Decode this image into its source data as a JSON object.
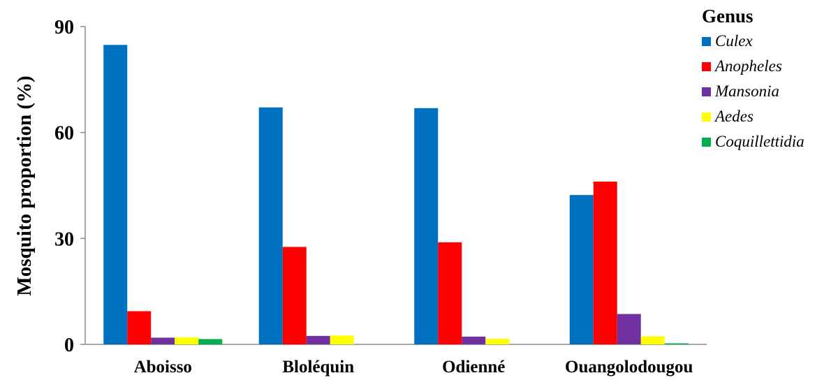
{
  "chart_data": {
    "type": "bar",
    "categories": [
      "Aboisso",
      "Bloléquin",
      "Odienné",
      "Ouangolodougou"
    ],
    "ylabel": "Mosquito proportion (%)",
    "xlabel": "",
    "ylim": [
      0,
      90
    ],
    "yticks": [
      0,
      30,
      60,
      90
    ],
    "grid": false,
    "legend_title": "Genus",
    "legend_placement": "top-right",
    "series": [
      {
        "name": "Culex",
        "color": "#0070C0",
        "values": [
          84.8,
          67.1,
          66.9,
          42.3
        ]
      },
      {
        "name": "Anopheles",
        "color": "#FF0000",
        "values": [
          9.4,
          27.6,
          28.9,
          46.1
        ]
      },
      {
        "name": "Mansonia",
        "color": "#7030A0",
        "values": [
          1.9,
          2.4,
          2.2,
          8.6
        ]
      },
      {
        "name": "Aedes",
        "color": "#FFFF00",
        "values": [
          2.0,
          2.5,
          1.6,
          2.3
        ]
      },
      {
        "name": "Coquillettidia",
        "color": "#00B050",
        "values": [
          1.5,
          0,
          0,
          0.3
        ]
      }
    ]
  }
}
